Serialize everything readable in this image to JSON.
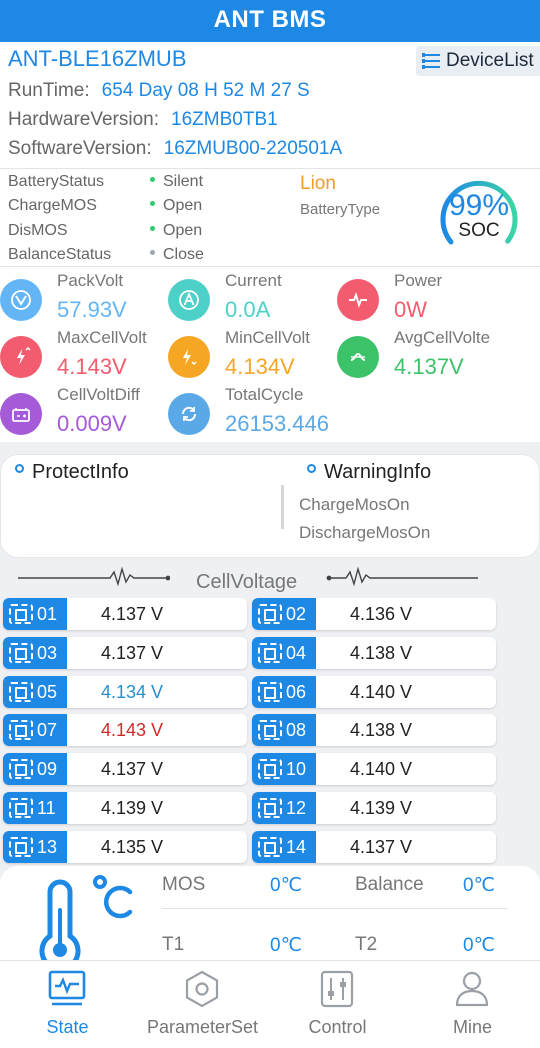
{
  "app": {
    "title": "ANT BMS"
  },
  "device": {
    "name": "ANT-BLE16ZMUB",
    "device_list_label": "DeviceList",
    "runtime_label": "RunTime:",
    "runtime_value": "654 Day 08 H 52 M 27 S",
    "hardware_label": "HardwareVersion:",
    "hardware_value": "16ZMB0TB1",
    "software_label": "SoftwareVersion:",
    "software_value": "16ZMUB00-220501A"
  },
  "status": {
    "rows": [
      {
        "label": "BatteryStatus",
        "value": "Silent",
        "dot_color": "#2ecc71"
      },
      {
        "label": "ChargeMOS",
        "value": "Open",
        "dot_color": "#2ecc71"
      },
      {
        "label": "DisMOS",
        "value": "Open",
        "dot_color": "#2ecc71"
      },
      {
        "label": "BalanceStatus",
        "value": "Close",
        "dot_color": "#9aa5b1"
      }
    ],
    "battery_type": "Lion",
    "battery_type_label": "BatteryType",
    "soc_percent": "99%",
    "soc_label": "SOC",
    "soc_fraction": 0.99
  },
  "metrics": [
    {
      "label": "PackVolt",
      "value": "57.93V",
      "color": "#64b5f6",
      "icon": "voltage-icon"
    },
    {
      "label": "Current",
      "value": "0.0A",
      "color": "#4dd0c8",
      "icon": "current-icon"
    },
    {
      "label": "Power",
      "value": "0W",
      "color": "#f25c6e",
      "icon": "power-icon"
    },
    {
      "label": "MaxCellVolt",
      "value": "4.143V",
      "color": "#f25c6e",
      "icon": "max-cell-icon"
    },
    {
      "label": "MinCellVolt",
      "value": "4.134V",
      "color": "#f5a623",
      "icon": "min-cell-icon"
    },
    {
      "label": "AvgCellVolte",
      "value": "4.137V",
      "color": "#3cc36a",
      "icon": "avg-cell-icon"
    },
    {
      "label": "CellVoltDiff",
      "value": "0.009V",
      "color": "#a55ad8",
      "icon": "battery-diff-icon"
    },
    {
      "label": "TotalCycle",
      "value": "26153.446",
      "color": "#5aa9e6",
      "icon": "cycle-icon"
    }
  ],
  "protect": {
    "protect_title": "ProtectInfo",
    "warning_title": "WarningInfo",
    "warnings": [
      "ChargeMosOn",
      "DischargeMosOn"
    ]
  },
  "cells": {
    "title": "CellVoltage",
    "items": [
      {
        "id": "01",
        "voltage": "4.137 V",
        "color": "#222222"
      },
      {
        "id": "02",
        "voltage": "4.136 V",
        "color": "#222222"
      },
      {
        "id": "03",
        "voltage": "4.137 V",
        "color": "#222222"
      },
      {
        "id": "04",
        "voltage": "4.138 V",
        "color": "#222222"
      },
      {
        "id": "05",
        "voltage": "4.134 V",
        "color": "#2a8fcf"
      },
      {
        "id": "06",
        "voltage": "4.140 V",
        "color": "#222222"
      },
      {
        "id": "07",
        "voltage": "4.143 V",
        "color": "#d12a2a"
      },
      {
        "id": "08",
        "voltage": "4.138 V",
        "color": "#222222"
      },
      {
        "id": "09",
        "voltage": "4.137 V",
        "color": "#222222"
      },
      {
        "id": "10",
        "voltage": "4.140 V",
        "color": "#222222"
      },
      {
        "id": "11",
        "voltage": "4.139 V",
        "color": "#222222"
      },
      {
        "id": "12",
        "voltage": "4.139 V",
        "color": "#222222"
      },
      {
        "id": "13",
        "voltage": "4.135 V",
        "color": "#222222"
      },
      {
        "id": "14",
        "voltage": "4.137 V",
        "color": "#222222"
      }
    ]
  },
  "temperature": {
    "mos_label": "MOS",
    "mos_value": "0℃",
    "balance_label": "Balance",
    "balance_value": "0℃",
    "t1_label": "T1",
    "t1_value": "0℃",
    "t2_label": "T2",
    "t2_value": "0℃"
  },
  "nav": [
    {
      "label": "State",
      "icon": "state-icon",
      "active": true
    },
    {
      "label": "ParameterSet",
      "icon": "parameter-set-icon",
      "active": false
    },
    {
      "label": "Control",
      "icon": "control-icon",
      "active": false
    },
    {
      "label": "Mine",
      "icon": "mine-icon",
      "active": false
    }
  ],
  "colors": {
    "accent": "#1e88e5",
    "warning_orange": "#f39c2b"
  }
}
